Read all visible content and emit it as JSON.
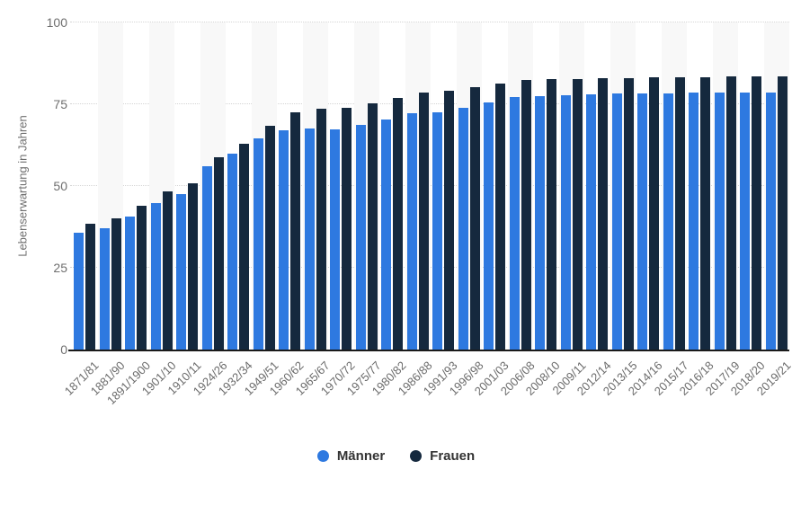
{
  "chart_data": {
    "type": "bar",
    "title": "",
    "xlabel": "",
    "ylabel": "Lebenserwartung in Jahren",
    "ylim": [
      0,
      100
    ],
    "yticks": [
      0,
      25,
      50,
      75,
      100
    ],
    "grid": "horizontal-dotted",
    "legend_position": "bottom-center",
    "categories": [
      "1871/81",
      "1881/90",
      "1891/1900",
      "1901/10",
      "1910/11",
      "1924/26",
      "1932/34",
      "1949/51",
      "1960/62",
      "1965/67",
      "1970/72",
      "1975/77",
      "1980/82",
      "1986/88",
      "1991/93",
      "1996/98",
      "2001/03",
      "2006/08",
      "2008/10",
      "2009/11",
      "2012/14",
      "2013/15",
      "2014/16",
      "2015/17",
      "2016/18",
      "2017/19",
      "2018/20",
      "2019/21"
    ],
    "series": [
      {
        "name": "Männer",
        "color": "#2e79e0",
        "values": [
          35.6,
          37.2,
          40.6,
          44.8,
          47.4,
          56.0,
          59.9,
          64.6,
          66.9,
          67.6,
          67.4,
          68.6,
          70.2,
          72.2,
          72.5,
          74.0,
          75.6,
          77.2,
          77.5,
          77.7,
          78.1,
          78.2,
          78.2,
          78.3,
          78.5,
          78.6,
          78.6,
          78.5
        ]
      },
      {
        "name": "Frauen",
        "color": "#15293e",
        "values": [
          38.5,
          40.2,
          44.0,
          48.3,
          50.7,
          58.8,
          62.8,
          68.5,
          72.4,
          73.5,
          73.8,
          75.2,
          76.9,
          78.7,
          79.0,
          80.3,
          81.3,
          82.4,
          82.6,
          82.7,
          83.1,
          83.1,
          83.2,
          83.2,
          83.3,
          83.4,
          83.4,
          83.4
        ]
      }
    ]
  }
}
